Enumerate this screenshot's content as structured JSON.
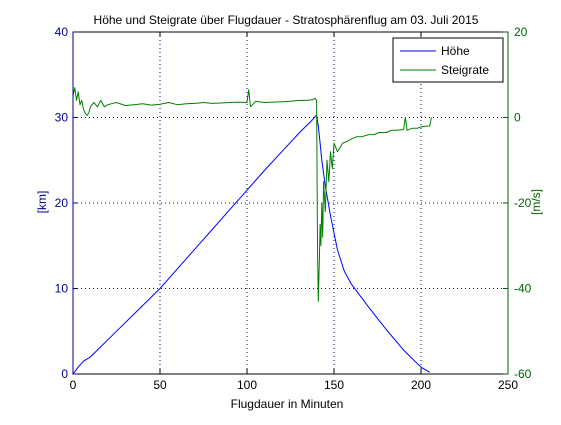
{
  "chart_data": {
    "type": "line",
    "title": "Höhe und Steigrate über Flugdauer - Stratosphärenflug am 03. Juli 2015",
    "xlabel": "Flugdauer in Minuten",
    "ylabel_left": "[km]",
    "ylabel_right": "[m/s]",
    "xlim": [
      0,
      250
    ],
    "ylim_left": [
      0,
      40
    ],
    "ylim_right": [
      -60,
      20
    ],
    "xticks": [
      "0",
      "50",
      "100",
      "150",
      "200",
      "250"
    ],
    "yticks_left": [
      "0",
      "10",
      "20",
      "30",
      "40"
    ],
    "yticks_right": [
      "-60",
      "-40",
      "-20",
      "0",
      "20"
    ],
    "grid": true,
    "legend_position": "top-right",
    "colors": {
      "left_axis": "#00008b",
      "right_axis": "#006400",
      "hoehe": "#0000ff",
      "steigrate": "#008000"
    },
    "series": [
      {
        "name": "Höhe",
        "axis": "left",
        "color": "#0000ff",
        "x": [
          0,
          3,
          6,
          10,
          15,
          20,
          30,
          40,
          50,
          60,
          70,
          80,
          90,
          100,
          110,
          120,
          130,
          137,
          140,
          141,
          142,
          143,
          145,
          148,
          152,
          156,
          160,
          170,
          180,
          190,
          200,
          205
        ],
        "y": [
          0,
          0.8,
          1.5,
          2.0,
          3.0,
          4.0,
          6.0,
          8.0,
          10.0,
          12.3,
          14.6,
          16.9,
          19.2,
          21.5,
          23.8,
          26.0,
          28.2,
          29.6,
          30.3,
          29.0,
          27.0,
          25.0,
          22.0,
          18.5,
          14.5,
          12.0,
          10.5,
          7.8,
          5.2,
          2.8,
          0.8,
          0.2
        ]
      },
      {
        "name": "Steigrate",
        "axis": "right",
        "color": "#008000",
        "x": [
          0,
          1,
          2,
          3,
          4,
          5,
          6,
          7,
          8,
          9,
          10,
          12,
          14,
          16,
          18,
          20,
          25,
          30,
          35,
          40,
          45,
          50,
          55,
          60,
          65,
          70,
          75,
          80,
          85,
          90,
          95,
          100,
          101,
          102,
          105,
          110,
          115,
          120,
          125,
          130,
          135,
          138,
          139,
          140,
          140.5,
          141,
          141.5,
          142,
          142.5,
          143,
          143.5,
          144,
          145,
          146,
          147,
          148,
          149,
          150,
          152,
          155,
          158,
          160,
          163,
          166,
          170,
          173,
          176,
          180,
          183,
          186,
          190,
          191,
          192,
          195,
          198,
          200,
          203,
          205,
          206
        ],
        "y": [
          5,
          7,
          4,
          6,
          3,
          4,
          2,
          1,
          0.5,
          1,
          2.5,
          3.5,
          2.5,
          4,
          2.5,
          3,
          3.5,
          2.8,
          3,
          3.2,
          2.9,
          3.1,
          3.5,
          3,
          3.2,
          3.3,
          3.5,
          3.3,
          3.4,
          3.5,
          3.6,
          3.5,
          6.5,
          2.5,
          3.8,
          3.5,
          3.6,
          3.7,
          3.8,
          4,
          4,
          4.2,
          4.5,
          4,
          -30,
          -43,
          -35,
          -25,
          -30,
          -20,
          -28,
          -15,
          -22,
          -10,
          -15,
          -8,
          -12,
          -6,
          -8,
          -6,
          -5.5,
          -5,
          -4.5,
          -4.5,
          -4,
          -4,
          -3.5,
          -3.5,
          -3,
          -3,
          -2.8,
          0,
          -3,
          -2.5,
          -2.5,
          -2.2,
          -2,
          -2,
          0
        ]
      }
    ]
  }
}
